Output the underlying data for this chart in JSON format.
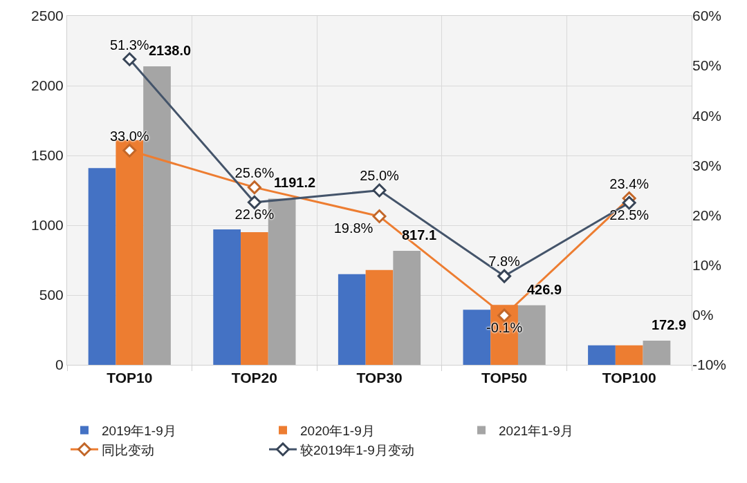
{
  "chart_data": {
    "type": "bar",
    "categories": [
      "TOP10",
      "TOP20",
      "TOP30",
      "TOP50",
      "TOP100"
    ],
    "series": [
      {
        "name": "2019年1-9月",
        "color": "#4472c4",
        "values": [
          1410,
          970,
          650,
          395,
          140
        ]
      },
      {
        "name": "2020年1-9月",
        "color": "#ed7d31",
        "values": [
          1610,
          950,
          680,
          430,
          140
        ]
      },
      {
        "name": "2021年1-9月",
        "color": "#a5a5a5",
        "values": [
          2138.0,
          1191.2,
          817.1,
          426.9,
          172.9
        ],
        "value_labels": [
          "2138.0",
          "1191.2",
          "817.1",
          "426.9",
          "172.9"
        ]
      },
      {
        "name": "同比变动",
        "type": "line",
        "axis": "y2",
        "color": "#ed7d31",
        "values": [
          33.0,
          25.6,
          19.8,
          -0.1,
          23.4
        ],
        "value_labels": [
          "33.0%",
          "25.6%",
          "19.8%",
          "-0.1%",
          "23.4%"
        ]
      },
      {
        "name": "较2019年1-9月变动",
        "type": "line",
        "axis": "y2",
        "color": "#44546a",
        "values": [
          51.3,
          22.6,
          25.0,
          7.8,
          22.5
        ],
        "value_labels": [
          "51.3%",
          "22.6%",
          "25.0%",
          "7.8%",
          "22.5%"
        ]
      }
    ],
    "ylim": [
      0,
      2500
    ],
    "yticks": [
      0,
      500,
      1000,
      1500,
      2000,
      2500
    ],
    "y2lim": [
      -10,
      60
    ],
    "y2ticks": [
      {
        "value": -10,
        "label": "-10%"
      },
      {
        "value": 0,
        "label": "0%"
      },
      {
        "value": 10,
        "label": "10%"
      },
      {
        "value": 20,
        "label": "20%"
      },
      {
        "value": 30,
        "label": "30%"
      },
      {
        "value": 40,
        "label": "40%"
      },
      {
        "value": 50,
        "label": "50%"
      },
      {
        "value": 60,
        "label": "60%"
      }
    ],
    "grid": true,
    "legend": "bottom",
    "marker": "diamond",
    "line_style": "solid"
  }
}
